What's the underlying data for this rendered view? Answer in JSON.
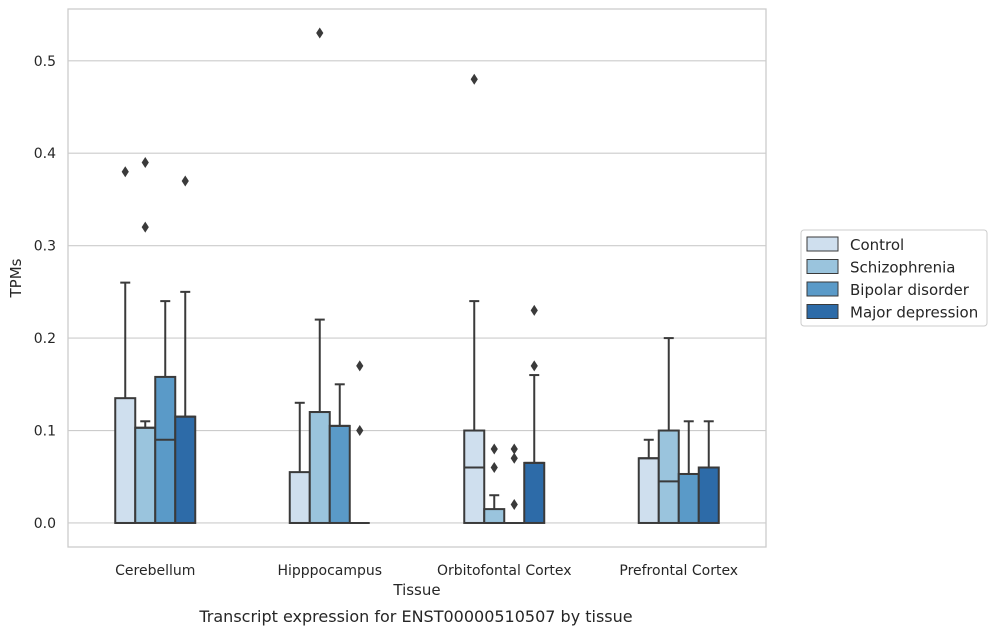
{
  "chart_data": {
    "type": "box",
    "xlabel": "Tissue",
    "ylabel": "TPMs",
    "caption": "Transcript expression for ENST00000510507 by tissue",
    "ylim": [
      -0.026,
      0.556
    ],
    "yticks": [
      0.0,
      0.1,
      0.2,
      0.3,
      0.4,
      0.5
    ],
    "ytick_labels": [
      "0.0",
      "0.1",
      "0.2",
      "0.3",
      "0.4",
      "0.5"
    ],
    "grid": "horizontal",
    "legend_position": "right",
    "categories": [
      "Cerebellum",
      "Hipppocampus",
      "Orbitofontal Cortex",
      "Prefrontal Cortex"
    ],
    "series": [
      {
        "name": "Control",
        "color": "#cfdfee",
        "boxes": [
          {
            "min": 0.0,
            "q1": 0.0,
            "median": 0.0,
            "q3": 0.135,
            "max": 0.26,
            "outliers": [
              0.38
            ]
          },
          {
            "min": 0.0,
            "q1": 0.0,
            "median": 0.0,
            "q3": 0.055,
            "max": 0.13,
            "outliers": []
          },
          {
            "min": 0.0,
            "q1": 0.0,
            "median": 0.06,
            "q3": 0.1,
            "max": 0.24,
            "outliers": [
              0.48
            ]
          },
          {
            "min": 0.0,
            "q1": 0.0,
            "median": 0.07,
            "q3": 0.07,
            "max": 0.09,
            "outliers": []
          }
        ]
      },
      {
        "name": "Schizophrenia",
        "color": "#9ac4dd",
        "boxes": [
          {
            "min": 0.0,
            "q1": 0.0,
            "median": 0.103,
            "q3": 0.103,
            "max": 0.11,
            "outliers": [
              0.32,
              0.39
            ]
          },
          {
            "min": 0.0,
            "q1": 0.0,
            "median": 0.12,
            "q3": 0.12,
            "max": 0.22,
            "outliers": [
              0.53
            ]
          },
          {
            "min": 0.0,
            "q1": 0.0,
            "median": 0.0,
            "q3": 0.015,
            "max": 0.03,
            "outliers": [
              0.06,
              0.08
            ]
          },
          {
            "min": 0.0,
            "q1": 0.0,
            "median": 0.045,
            "q3": 0.1,
            "max": 0.2,
            "outliers": []
          }
        ]
      },
      {
        "name": "Bipolar disorder",
        "color": "#5a9ac8",
        "boxes": [
          {
            "min": 0.0,
            "q1": 0.0,
            "median": 0.09,
            "q3": 0.158,
            "max": 0.24,
            "outliers": []
          },
          {
            "min": 0.0,
            "q1": 0.0,
            "median": 0.105,
            "q3": 0.105,
            "max": 0.15,
            "outliers": []
          },
          {
            "min": 0.0,
            "q1": 0.0,
            "median": 0.0,
            "q3": 0.0,
            "max": 0.0,
            "outliers": [
              0.02,
              0.07,
              0.08
            ]
          },
          {
            "min": 0.0,
            "q1": 0.0,
            "median": 0.053,
            "q3": 0.053,
            "max": 0.11,
            "outliers": []
          }
        ]
      },
      {
        "name": "Major depression",
        "color": "#2d6ba8",
        "boxes": [
          {
            "min": 0.0,
            "q1": 0.0,
            "median": 0.115,
            "q3": 0.115,
            "max": 0.25,
            "outliers": [
              0.37
            ]
          },
          {
            "min": 0.0,
            "q1": 0.0,
            "median": 0.0,
            "q3": 0.0,
            "max": 0.0,
            "outliers": [
              0.1,
              0.17
            ]
          },
          {
            "min": 0.0,
            "q1": 0.0,
            "median": 0.065,
            "q3": 0.065,
            "max": 0.16,
            "outliers": [
              0.17,
              0.23
            ]
          },
          {
            "min": 0.0,
            "q1": 0.0,
            "median": 0.06,
            "q3": 0.06,
            "max": 0.11,
            "outliers": []
          }
        ]
      }
    ]
  }
}
